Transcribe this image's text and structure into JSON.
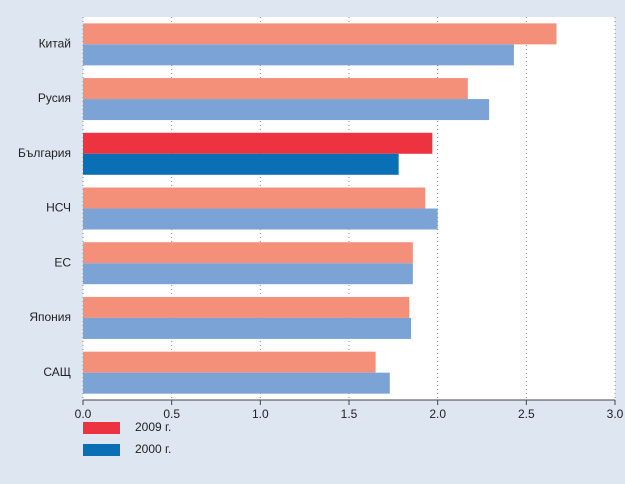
{
  "chart_data": {
    "type": "hbar",
    "categories": [
      "Китай",
      "Русия",
      "България",
      "НСЧ",
      "ЕС",
      "Япония",
      "САЩ"
    ],
    "series": [
      {
        "name": "2009 г.",
        "color": "#ee3340",
        "bar_colors": [
          "#f4907a",
          "#f4907a",
          "#ee3340",
          "#f4907a",
          "#f4907a",
          "#f4907a",
          "#f4907a"
        ],
        "values": [
          2.67,
          2.17,
          1.97,
          1.93,
          1.86,
          1.84,
          1.65
        ]
      },
      {
        "name": "2000 г.",
        "color": "#0a6fb5",
        "bar_colors": [
          "#7ba3d6",
          "#7ba3d6",
          "#0a6fb5",
          "#7ba3d6",
          "#7ba3d6",
          "#7ba3d6",
          "#7ba3d6"
        ],
        "values": [
          2.43,
          2.29,
          1.78,
          2.0,
          1.86,
          1.85,
          1.73
        ]
      }
    ],
    "xlim": [
      0,
      3
    ],
    "xticks": [
      {
        "value": 0,
        "label": "0.0"
      },
      0.5,
      {
        "value": 1,
        "label": "1.0"
      },
      1.5,
      {
        "value": 2,
        "label": "2.0"
      },
      2.5,
      {
        "value": 3,
        "label": "3.0"
      }
    ],
    "grid": true
  }
}
